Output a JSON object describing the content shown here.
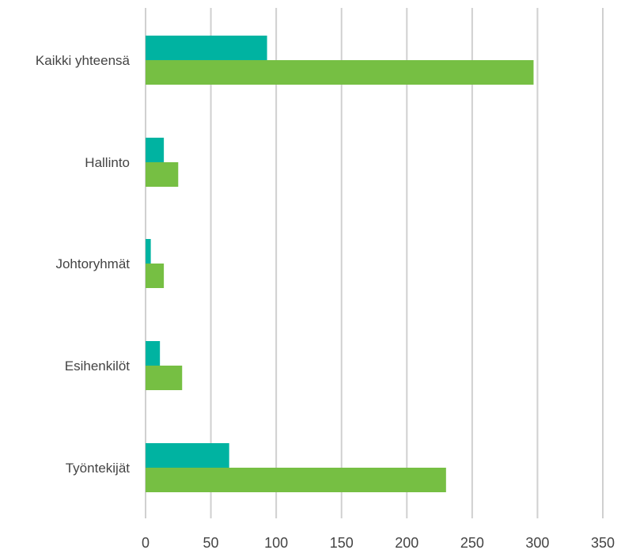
{
  "chart_data": {
    "type": "bar",
    "orientation": "horizontal",
    "categories": [
      "Kaikki yhteensä",
      "Hallinto",
      "Johtoryhmät",
      "Esihenkilöt",
      "Työntekijät"
    ],
    "series": [
      {
        "color": "#00b3a1",
        "values": [
          93,
          14,
          4,
          11,
          64
        ]
      },
      {
        "color": "#76bf43",
        "values": [
          297,
          25,
          14,
          28,
          230
        ]
      }
    ],
    "xlim": [
      0,
      350
    ],
    "xticks": [
      0,
      50,
      100,
      150,
      200,
      250,
      300,
      350
    ],
    "xticks_labels": [
      "0",
      "50",
      "100",
      "150",
      "200",
      "250",
      "300",
      "350"
    ],
    "grid": "vertical",
    "legend": "none"
  }
}
